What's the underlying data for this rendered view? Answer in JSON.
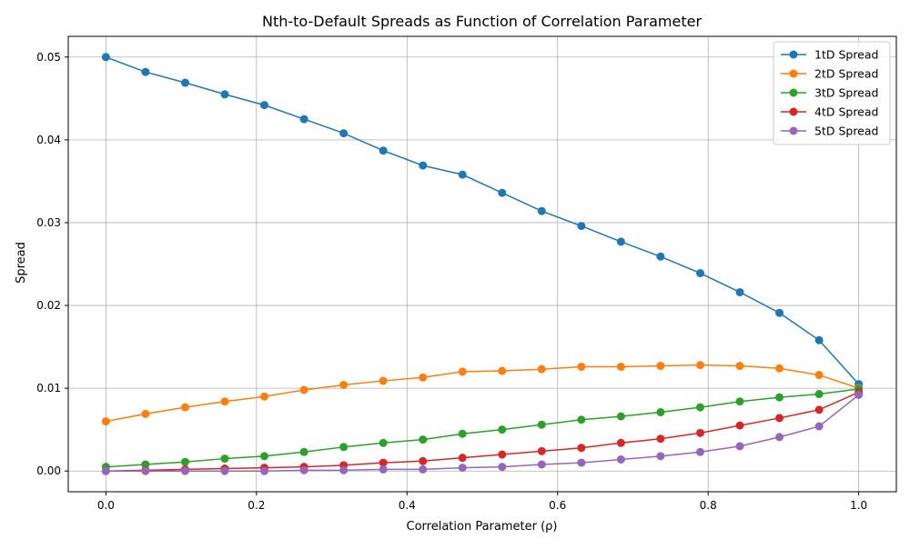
{
  "chart_data": {
    "type": "line",
    "title": "Nth-to-Default Spreads as Function of Correlation Parameter",
    "xlabel": "Correlation Parameter (ρ)",
    "ylabel": "Spread",
    "xlim": [
      -0.05,
      1.05
    ],
    "ylim": [
      -0.0025,
      0.0525
    ],
    "x_ticks": [
      0.0,
      0.2,
      0.4,
      0.6,
      0.8,
      1.0
    ],
    "x_tick_labels": [
      "0.0",
      "0.2",
      "0.4",
      "0.6",
      "0.8",
      "1.0"
    ],
    "y_ticks": [
      0.0,
      0.01,
      0.02,
      0.03,
      0.04,
      0.05
    ],
    "y_tick_labels": [
      "0.00",
      "0.01",
      "0.02",
      "0.03",
      "0.04",
      "0.05"
    ],
    "grid": true,
    "legend_position": "top-right",
    "x": [
      0.0,
      0.0526,
      0.1053,
      0.1579,
      0.2105,
      0.2632,
      0.3158,
      0.3684,
      0.4211,
      0.4737,
      0.5263,
      0.5789,
      0.6316,
      0.6842,
      0.7368,
      0.7895,
      0.8421,
      0.8947,
      0.9474,
      1.0
    ],
    "series": [
      {
        "name": "1tD Spread",
        "color": "#1f77b4",
        "values": [
          0.05,
          0.0482,
          0.0469,
          0.0455,
          0.0442,
          0.0425,
          0.0408,
          0.0387,
          0.0369,
          0.0358,
          0.0336,
          0.0314,
          0.0296,
          0.0277,
          0.0259,
          0.0239,
          0.0216,
          0.0191,
          0.0158,
          0.0105
        ]
      },
      {
        "name": "2tD Spread",
        "color": "#ff7f0e",
        "values": [
          0.006,
          0.0069,
          0.0077,
          0.0084,
          0.009,
          0.0098,
          0.0104,
          0.0109,
          0.0113,
          0.012,
          0.0121,
          0.0123,
          0.0126,
          0.0126,
          0.0127,
          0.0128,
          0.0127,
          0.0124,
          0.0116,
          0.01
        ]
      },
      {
        "name": "3tD Spread",
        "color": "#2ca02c",
        "values": [
          0.0005,
          0.0008,
          0.0011,
          0.0015,
          0.0018,
          0.0023,
          0.0029,
          0.0034,
          0.0038,
          0.0045,
          0.005,
          0.0056,
          0.0062,
          0.0066,
          0.0071,
          0.0077,
          0.0084,
          0.0089,
          0.0093,
          0.0099
        ]
      },
      {
        "name": "4tD Spread",
        "color": "#d62728",
        "values": [
          0.0,
          0.0001,
          0.0002,
          0.0003,
          0.0004,
          0.0005,
          0.0007,
          0.001,
          0.0012,
          0.0016,
          0.002,
          0.0024,
          0.0028,
          0.0034,
          0.0039,
          0.0046,
          0.0055,
          0.0064,
          0.0074,
          0.0095
        ]
      },
      {
        "name": "5tD Spread",
        "color": "#9467bd",
        "values": [
          0.0,
          0.0,
          0.0,
          0.0,
          0.0,
          0.0001,
          0.0001,
          0.0002,
          0.0002,
          0.0004,
          0.0005,
          0.0008,
          0.001,
          0.0014,
          0.0018,
          0.0023,
          0.003,
          0.0041,
          0.0054,
          0.0092
        ]
      }
    ]
  }
}
